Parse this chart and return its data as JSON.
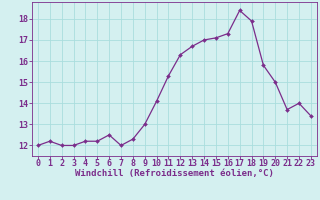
{
  "x": [
    0,
    1,
    2,
    3,
    4,
    5,
    6,
    7,
    8,
    9,
    10,
    11,
    12,
    13,
    14,
    15,
    16,
    17,
    18,
    19,
    20,
    21,
    22,
    23
  ],
  "y": [
    12.0,
    12.2,
    12.0,
    12.0,
    12.2,
    12.2,
    12.5,
    12.0,
    12.3,
    13.0,
    14.1,
    15.3,
    16.3,
    16.7,
    17.0,
    17.1,
    17.3,
    18.4,
    17.9,
    15.8,
    15.0,
    13.7,
    14.0,
    13.4
  ],
  "line_color": "#7b2d8b",
  "marker_color": "#7b2d8b",
  "bg_color": "#d4f0f0",
  "grid_color": "#aadddd",
  "xlabel": "Windchill (Refroidissement éolien,°C)",
  "xlabel_color": "#7b2d8b",
  "tick_color": "#7b2d8b",
  "ylim": [
    11.5,
    18.8
  ],
  "xlim": [
    -0.5,
    23.5
  ],
  "yticks": [
    12,
    13,
    14,
    15,
    16,
    17,
    18
  ],
  "xticks": [
    0,
    1,
    2,
    3,
    4,
    5,
    6,
    7,
    8,
    9,
    10,
    11,
    12,
    13,
    14,
    15,
    16,
    17,
    18,
    19,
    20,
    21,
    22,
    23
  ],
  "xlabel_fontsize": 6.5,
  "tick_fontsize": 6.0
}
